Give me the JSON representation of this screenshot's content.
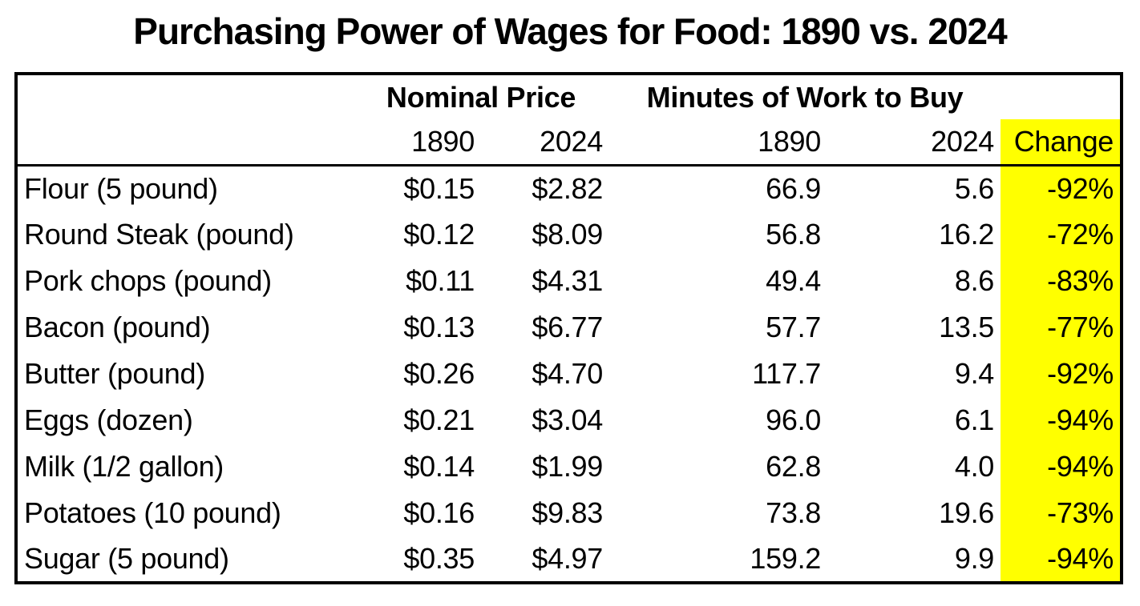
{
  "chart_data": {
    "type": "table",
    "title": "Purchasing Power of Wages for Food: 1890 vs. 2024",
    "group_headers": {
      "nominal": "Nominal Price",
      "minutes": "Minutes of Work to Buy"
    },
    "sub_headers": {
      "nominal_1890": "1890",
      "nominal_2024": "2024",
      "minutes_1890": "1890",
      "minutes_2024": "2024",
      "change": "Change"
    },
    "rows": [
      {
        "item": "Flour (5 pound)",
        "nominal_1890": "$0.15",
        "nominal_2024": "$2.82",
        "minutes_1890": "66.9",
        "minutes_2024": "5.6",
        "change": "-92%"
      },
      {
        "item": "Round Steak (pound)",
        "nominal_1890": "$0.12",
        "nominal_2024": "$8.09",
        "minutes_1890": "56.8",
        "minutes_2024": "16.2",
        "change": "-72%"
      },
      {
        "item": "Pork chops (pound)",
        "nominal_1890": "$0.11",
        "nominal_2024": "$4.31",
        "minutes_1890": "49.4",
        "minutes_2024": "8.6",
        "change": "-83%"
      },
      {
        "item": "Bacon (pound)",
        "nominal_1890": "$0.13",
        "nominal_2024": "$6.77",
        "minutes_1890": "57.7",
        "minutes_2024": "13.5",
        "change": "-77%"
      },
      {
        "item": "Butter (pound)",
        "nominal_1890": "$0.26",
        "nominal_2024": "$4.70",
        "minutes_1890": "117.7",
        "minutes_2024": "9.4",
        "change": "-92%"
      },
      {
        "item": "Eggs (dozen)",
        "nominal_1890": "$0.21",
        "nominal_2024": "$3.04",
        "minutes_1890": "96.0",
        "minutes_2024": "6.1",
        "change": "-94%"
      },
      {
        "item": "Milk (1/2 gallon)",
        "nominal_1890": "$0.14",
        "nominal_2024": "$1.99",
        "minutes_1890": "62.8",
        "minutes_2024": "4.0",
        "change": "-94%"
      },
      {
        "item": "Potatoes (10 pound)",
        "nominal_1890": "$0.16",
        "nominal_2024": "$9.83",
        "minutes_1890": "73.8",
        "minutes_2024": "19.6",
        "change": "-73%"
      },
      {
        "item": "Sugar (5 pound)",
        "nominal_1890": "$0.35",
        "nominal_2024": "$4.97",
        "minutes_1890": "159.2",
        "minutes_2024": "9.9",
        "change": "-94%"
      }
    ],
    "highlight_color": "#FFFF00",
    "layout": {
      "grid": "outer-border-only",
      "header_separator": true
    }
  }
}
